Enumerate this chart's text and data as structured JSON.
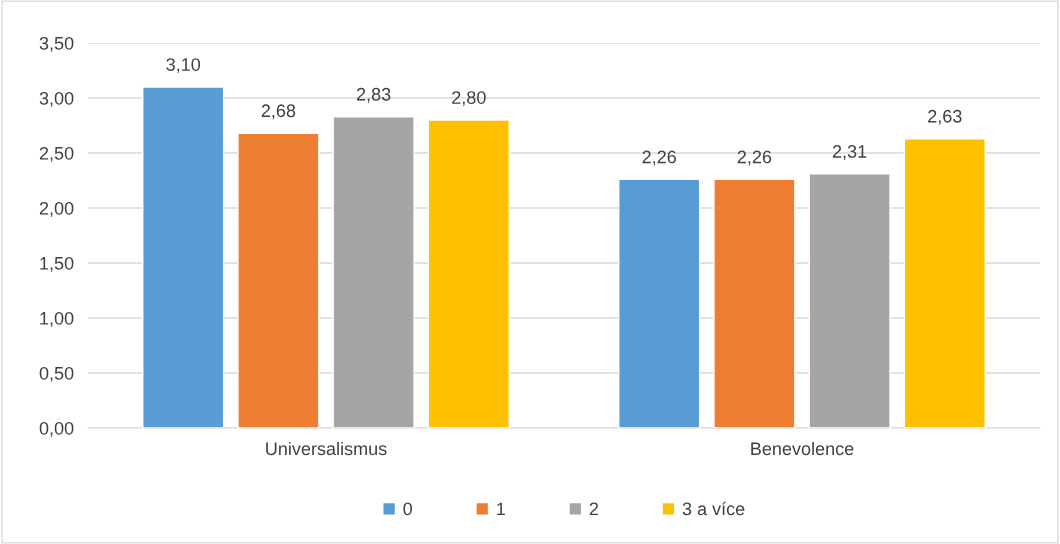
{
  "chart_data": {
    "type": "bar",
    "categories": [
      "Universalismus",
      "Benevolence"
    ],
    "series": [
      {
        "name": "0",
        "color": "#5b9bd5",
        "values": [
          3.1,
          2.26
        ],
        "value_labels": [
          "3,10",
          "2,26"
        ]
      },
      {
        "name": "1",
        "color": "#ed7d31",
        "values": [
          2.68,
          2.26
        ],
        "value_labels": [
          "2,68",
          "2,26"
        ]
      },
      {
        "name": "2",
        "color": "#a5a5a5",
        "values": [
          2.83,
          2.31
        ],
        "value_labels": [
          "2,83",
          "2,31"
        ]
      },
      {
        "name": "3 a více",
        "color": "#ffc000",
        "values": [
          2.8,
          2.63
        ],
        "value_labels": [
          "2,80",
          "2,63"
        ]
      }
    ],
    "ylim": [
      0,
      3.5
    ],
    "yticks": [
      {
        "value": 0,
        "label": "0,00"
      },
      {
        "value": 0.5,
        "label": "0,50"
      },
      {
        "value": 1,
        "label": "1,00"
      },
      {
        "value": 1.5,
        "label": "1,50"
      },
      {
        "value": 2,
        "label": "2,00"
      },
      {
        "value": 2.5,
        "label": "2,50"
      },
      {
        "value": 3,
        "label": "3,00"
      },
      {
        "value": 3.5,
        "label": "3,50"
      }
    ],
    "grid": "y",
    "legend": "bottom"
  }
}
